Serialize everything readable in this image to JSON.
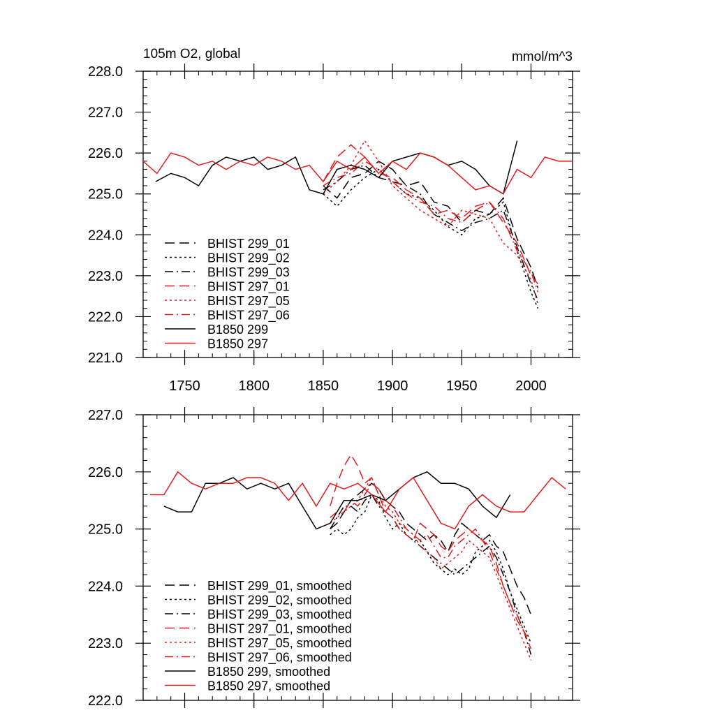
{
  "chart_data": [
    {
      "type": "line",
      "title": "105m O2, global",
      "units": "mmol/m^3",
      "xlim": [
        1720,
        2030
      ],
      "ylim": [
        221,
        228
      ],
      "x_ticks": [
        1750,
        1800,
        1850,
        1900,
        1950,
        2000
      ],
      "x_tick_labels": [
        "1750",
        "1800",
        "1850",
        "1900",
        "1950",
        "2000"
      ],
      "y_ticks": [
        221,
        222,
        223,
        224,
        225,
        226,
        227,
        228
      ],
      "y_tick_labels": [
        "221.0",
        "222.0",
        "223.0",
        "224.0",
        "225.0",
        "226.0",
        "227.0",
        "228.0"
      ],
      "legend_position": "bottom-left",
      "series": [
        {
          "name": "BHIST 299_01",
          "color": "#000000",
          "dash": "longdash",
          "x": [
            1850,
            1860,
            1870,
            1880,
            1890,
            1900,
            1910,
            1920,
            1930,
            1940,
            1950,
            1960,
            1970,
            1980,
            1990,
            2000,
            2005
          ],
          "y": [
            225.2,
            224.9,
            225.4,
            225.5,
            225.8,
            225.6,
            225.2,
            225.3,
            224.8,
            224.7,
            224.3,
            224.6,
            224.5,
            224.9,
            223.9,
            223.2,
            222.7
          ]
        },
        {
          "name": "BHIST 299_02",
          "color": "#000000",
          "dash": "dot",
          "x": [
            1850,
            1860,
            1870,
            1880,
            1890,
            1900,
            1910,
            1920,
            1930,
            1940,
            1950,
            1960,
            1970,
            1980,
            1990,
            2000,
            2005
          ],
          "y": [
            225.0,
            224.7,
            225.1,
            225.4,
            225.6,
            225.3,
            225.0,
            224.9,
            224.6,
            224.2,
            224.0,
            224.4,
            224.5,
            224.8,
            223.6,
            222.6,
            222.2
          ]
        },
        {
          "name": "BHIST 299_03",
          "color": "#000000",
          "dash": "dashdot",
          "x": [
            1850,
            1860,
            1870,
            1880,
            1890,
            1900,
            1910,
            1920,
            1930,
            1940,
            1950,
            1960,
            1970,
            1980,
            1990,
            2000,
            2005
          ],
          "y": [
            225.1,
            225.3,
            225.6,
            225.7,
            225.4,
            225.3,
            225.2,
            225.0,
            224.5,
            224.3,
            224.1,
            224.3,
            224.4,
            224.6,
            223.7,
            222.8,
            222.4
          ]
        },
        {
          "name": "BHIST 297_01",
          "color": "#e41a1c",
          "dash": "longdash",
          "x": [
            1850,
            1860,
            1870,
            1880,
            1890,
            1900,
            1910,
            1920,
            1930,
            1940,
            1950,
            1960,
            1970,
            1980,
            1990,
            2000,
            2005
          ],
          "y": [
            225.3,
            225.9,
            226.2,
            225.9,
            225.5,
            225.4,
            225.1,
            224.9,
            224.5,
            224.6,
            224.4,
            224.7,
            224.8,
            224.3,
            223.8,
            223.0,
            222.8
          ]
        },
        {
          "name": "BHIST 297_05",
          "color": "#e41a1c",
          "dash": "dot",
          "x": [
            1850,
            1860,
            1870,
            1880,
            1890,
            1900,
            1910,
            1920,
            1930,
            1940,
            1950,
            1960,
            1970,
            1980,
            1990,
            2000,
            2005
          ],
          "y": [
            225.0,
            225.3,
            225.7,
            226.3,
            225.8,
            225.2,
            224.9,
            224.6,
            224.4,
            224.2,
            224.6,
            224.5,
            224.4,
            223.8,
            223.5,
            222.9,
            222.3
          ]
        },
        {
          "name": "BHIST 297_06",
          "color": "#e41a1c",
          "dash": "dashdot",
          "x": [
            1850,
            1860,
            1870,
            1880,
            1890,
            1900,
            1910,
            1920,
            1930,
            1940,
            1950,
            1960,
            1970,
            1980,
            1990,
            2000,
            2005
          ],
          "y": [
            225.2,
            225.4,
            225.5,
            225.8,
            225.6,
            225.3,
            225.0,
            224.8,
            224.7,
            224.4,
            224.3,
            224.6,
            224.8,
            224.4,
            223.6,
            223.1,
            222.6
          ]
        },
        {
          "name": "B1850 299",
          "color": "#000000",
          "dash": "solid",
          "x": [
            1729,
            1740,
            1750,
            1760,
            1770,
            1780,
            1790,
            1800,
            1810,
            1820,
            1830,
            1840,
            1850,
            1860,
            1870,
            1880,
            1890,
            1900,
            1910,
            1920,
            1930,
            1940,
            1950,
            1960,
            1970,
            1980,
            1990
          ],
          "y": [
            225.3,
            225.5,
            225.4,
            225.2,
            225.7,
            225.9,
            225.8,
            225.9,
            225.6,
            225.7,
            225.9,
            225.1,
            225.0,
            225.6,
            225.7,
            225.6,
            225.4,
            225.8,
            225.9,
            226.0,
            225.9,
            225.7,
            225.8,
            225.6,
            225.2,
            225.0,
            226.3
          ]
        },
        {
          "name": "B1850 297",
          "color": "#e41a1c",
          "dash": "solid",
          "x": [
            1720,
            1730,
            1740,
            1750,
            1760,
            1770,
            1780,
            1790,
            1800,
            1810,
            1820,
            1830,
            1840,
            1850,
            1860,
            1870,
            1880,
            1890,
            1900,
            1910,
            1920,
            1930,
            1940,
            1950,
            1960,
            1970,
            1980,
            1990,
            2000,
            2010,
            2020,
            2030
          ],
          "y": [
            225.8,
            225.5,
            226.0,
            225.9,
            225.7,
            225.8,
            225.6,
            225.8,
            225.7,
            225.9,
            225.8,
            225.6,
            225.7,
            225.3,
            225.8,
            225.6,
            225.9,
            225.5,
            225.8,
            225.6,
            226.0,
            225.9,
            225.7,
            225.4,
            225.1,
            225.2,
            225.0,
            225.6,
            225.4,
            225.9,
            225.8,
            225.8
          ]
        }
      ]
    },
    {
      "type": "line",
      "xlim": [
        1720,
        2030
      ],
      "ylim": [
        222,
        227
      ],
      "x_ticks": [
        1750,
        1800,
        1850,
        1900,
        1950,
        2000
      ],
      "y_ticks": [
        222,
        223,
        224,
        225,
        226,
        227
      ],
      "y_tick_labels": [
        "222.0",
        "223.0",
        "224.0",
        "225.0",
        "226.0",
        "227.0"
      ],
      "legend_position": "bottom-left",
      "series": [
        {
          "name": "BHIST 299_01, smoothed",
          "color": "#000000",
          "dash": "longdash",
          "x": [
            1855,
            1860,
            1865,
            1870,
            1875,
            1880,
            1885,
            1890,
            1895,
            1900,
            1905,
            1910,
            1915,
            1920,
            1925,
            1930,
            1935,
            1940,
            1945,
            1950,
            1955,
            1960,
            1965,
            1970,
            1975,
            1980,
            1985,
            1990,
            1995,
            2000
          ],
          "y": [
            225.0,
            225.1,
            225.3,
            225.5,
            225.6,
            225.7,
            225.8,
            225.7,
            225.5,
            225.4,
            225.3,
            225.1,
            225.0,
            224.9,
            224.8,
            224.9,
            224.8,
            224.6,
            224.9,
            225.1,
            225.0,
            224.9,
            224.8,
            224.9,
            224.7,
            224.6,
            224.3,
            224.0,
            223.8,
            223.5
          ]
        },
        {
          "name": "BHIST 299_02, smoothed",
          "color": "#000000",
          "dash": "dot",
          "x": [
            1855,
            1860,
            1865,
            1870,
            1875,
            1880,
            1885,
            1890,
            1895,
            1900,
            1905,
            1910,
            1915,
            1920,
            1925,
            1930,
            1935,
            1940,
            1945,
            1950,
            1955,
            1960,
            1965,
            1970,
            1975,
            1980,
            1985,
            1990,
            1995,
            2000
          ],
          "y": [
            224.9,
            225.0,
            224.9,
            225.0,
            225.2,
            225.3,
            225.6,
            225.5,
            225.2,
            225.0,
            225.1,
            224.9,
            224.8,
            224.8,
            224.6,
            224.4,
            224.3,
            224.2,
            224.3,
            224.2,
            224.3,
            224.6,
            224.7,
            224.8,
            224.6,
            224.3,
            223.9,
            223.6,
            223.3,
            223.0
          ]
        },
        {
          "name": "BHIST 299_03, smoothed",
          "color": "#000000",
          "dash": "dashdot",
          "x": [
            1855,
            1860,
            1865,
            1870,
            1875,
            1880,
            1885,
            1890,
            1895,
            1900,
            1905,
            1910,
            1915,
            1920,
            1925,
            1930,
            1935,
            1940,
            1945,
            1950,
            1955,
            1960,
            1965,
            1970,
            1975,
            1980,
            1985,
            1990,
            1995,
            2000
          ],
          "y": [
            225.0,
            225.2,
            225.4,
            225.4,
            225.3,
            225.5,
            225.6,
            225.4,
            225.3,
            225.2,
            225.0,
            224.9,
            224.8,
            224.7,
            224.6,
            224.5,
            224.4,
            224.3,
            224.2,
            224.3,
            224.4,
            224.5,
            224.6,
            224.7,
            224.5,
            224.2,
            223.9,
            223.5,
            223.2,
            222.8
          ]
        },
        {
          "name": "BHIST 297_01, smoothed",
          "color": "#e41a1c",
          "dash": "longdash",
          "x": [
            1855,
            1860,
            1865,
            1870,
            1875,
            1880,
            1885,
            1890,
            1895,
            1900,
            1905,
            1910,
            1915,
            1920,
            1925,
            1930,
            1935,
            1940,
            1945,
            1950,
            1955,
            1960,
            1965,
            1970,
            1975,
            1980,
            1985,
            1990,
            1995,
            2000
          ],
          "y": [
            225.4,
            225.8,
            226.1,
            226.3,
            226.1,
            225.8,
            225.9,
            225.6,
            225.3,
            225.2,
            225.0,
            224.9,
            224.8,
            225.1,
            225.0,
            224.9,
            224.7,
            224.6,
            224.8,
            224.9,
            225.0,
            224.9,
            224.8,
            224.7,
            224.4,
            224.0,
            223.7,
            223.4,
            223.2,
            222.9
          ]
        },
        {
          "name": "BHIST 297_05, smoothed",
          "color": "#e41a1c",
          "dash": "dot",
          "x": [
            1855,
            1860,
            1865,
            1870,
            1875,
            1880,
            1885,
            1890,
            1895,
            1900,
            1905,
            1910,
            1915,
            1920,
            1925,
            1930,
            1935,
            1940,
            1945,
            1950,
            1955,
            1960,
            1965,
            1970,
            1975,
            1980,
            1985,
            1990,
            1995,
            2000
          ],
          "y": [
            225.1,
            225.2,
            225.3,
            225.4,
            225.5,
            225.7,
            225.9,
            225.6,
            225.4,
            225.3,
            225.1,
            225.0,
            224.9,
            224.7,
            224.6,
            224.5,
            224.3,
            224.4,
            224.5,
            224.6,
            224.8,
            224.7,
            224.6,
            224.5,
            224.2,
            223.9,
            223.6,
            223.3,
            223.0,
            222.7
          ]
        },
        {
          "name": "BHIST 297_06, smoothed",
          "color": "#e41a1c",
          "dash": "dashdot",
          "x": [
            1855,
            1860,
            1865,
            1870,
            1875,
            1880,
            1885,
            1890,
            1895,
            1900,
            1905,
            1910,
            1915,
            1920,
            1925,
            1930,
            1935,
            1940,
            1945,
            1950,
            1955,
            1960,
            1965,
            1970,
            1975,
            1980,
            1985,
            1990,
            1995,
            2000
          ],
          "y": [
            225.2,
            225.3,
            225.3,
            225.5,
            225.4,
            225.6,
            225.8,
            225.7,
            225.5,
            225.4,
            225.2,
            225.0,
            224.9,
            224.8,
            224.9,
            224.7,
            224.5,
            224.5,
            224.7,
            224.8,
            224.9,
            225.0,
            224.8,
            224.6,
            224.3,
            224.0,
            223.7,
            223.5,
            223.2,
            223.0
          ]
        },
        {
          "name": "B1850 299, smoothed",
          "color": "#000000",
          "dash": "solid",
          "x": [
            1735,
            1745,
            1755,
            1765,
            1775,
            1785,
            1795,
            1805,
            1815,
            1825,
            1835,
            1845,
            1855,
            1865,
            1875,
            1885,
            1895,
            1905,
            1915,
            1925,
            1935,
            1945,
            1955,
            1965,
            1975,
            1985
          ],
          "y": [
            225.4,
            225.3,
            225.3,
            225.8,
            225.8,
            225.9,
            225.7,
            225.8,
            225.7,
            225.8,
            225.4,
            225.0,
            225.1,
            225.5,
            225.5,
            225.6,
            225.5,
            225.7,
            225.9,
            226.0,
            225.8,
            225.8,
            225.7,
            225.4,
            225.2,
            225.6
          ]
        },
        {
          "name": "B1850 297, smoothed",
          "color": "#e41a1c",
          "dash": "solid",
          "x": [
            1725,
            1735,
            1745,
            1755,
            1765,
            1775,
            1785,
            1795,
            1805,
            1815,
            1825,
            1835,
            1845,
            1855,
            1865,
            1875,
            1885,
            1895,
            1905,
            1915,
            1925,
            1935,
            1945,
            1955,
            1965,
            1975,
            1985,
            1995,
            2005,
            2015,
            2025
          ],
          "y": [
            225.6,
            225.6,
            226.0,
            225.8,
            225.7,
            225.8,
            225.8,
            225.9,
            225.9,
            225.8,
            225.5,
            225.8,
            225.4,
            225.8,
            225.7,
            225.8,
            225.6,
            225.3,
            225.7,
            225.9,
            225.5,
            225.1,
            225.0,
            225.4,
            225.6,
            225.4,
            225.3,
            225.3,
            225.6,
            225.9,
            225.7
          ]
        }
      ]
    }
  ]
}
